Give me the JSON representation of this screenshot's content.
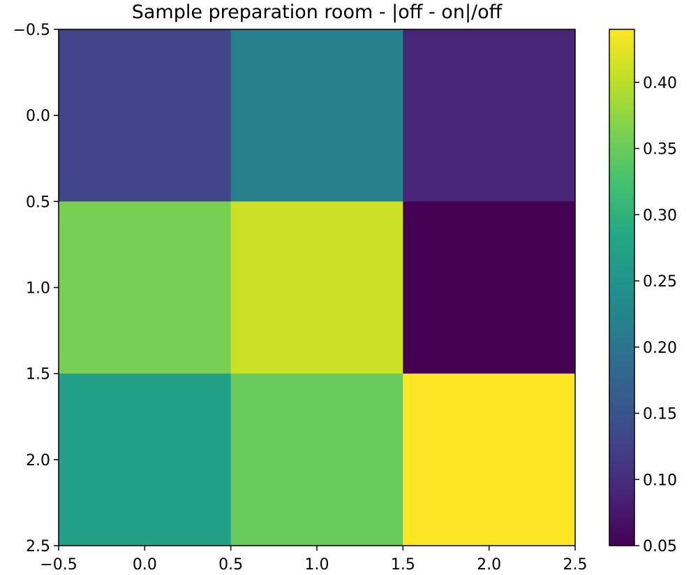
{
  "chart_data": {
    "type": "heatmap",
    "title": "Sample preparation room - |off - on|/off",
    "xlabel": "",
    "ylabel": "",
    "x_ticks": [
      "−0.5",
      "0.0",
      "0.5",
      "1.0",
      "1.5",
      "2.0",
      "2.5"
    ],
    "y_ticks": [
      "−0.5",
      "0.0",
      "0.5",
      "1.0",
      "1.5",
      "2.0",
      "2.5"
    ],
    "xlim": [
      -0.5,
      2.5
    ],
    "ylim": [
      2.5,
      -0.5
    ],
    "values": [
      [
        0.13,
        0.22,
        0.09
      ],
      [
        0.36,
        0.41,
        0.05
      ],
      [
        0.27,
        0.35,
        0.44
      ]
    ],
    "colorbar": {
      "colormap": "viridis",
      "min": 0.05,
      "max": 0.44,
      "ticks": [
        "0.05",
        "0.10",
        "0.15",
        "0.20",
        "0.25",
        "0.30",
        "0.35",
        "0.40"
      ]
    },
    "grid": false
  }
}
